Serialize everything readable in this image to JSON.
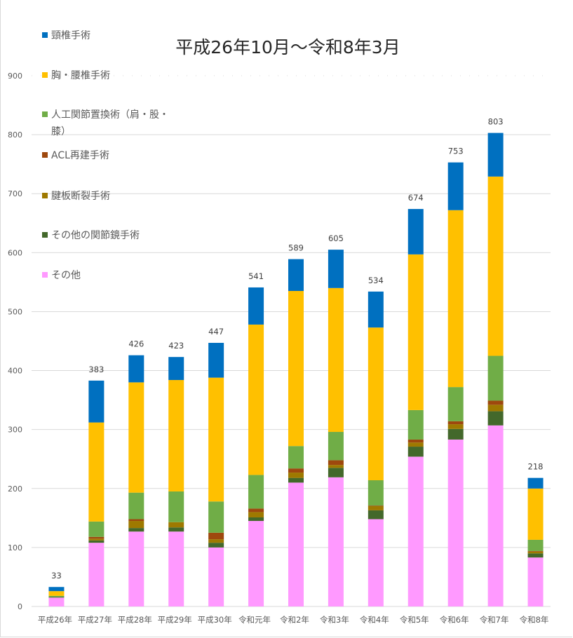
{
  "chart_data": {
    "type": "bar",
    "stacked": true,
    "title": "平成26年10月～令和8年3月",
    "xlabel": "",
    "ylabel": "",
    "ylim": [
      0,
      900
    ],
    "yticks": [
      "0",
      "100",
      "200",
      "300",
      "400",
      "500",
      "600",
      "700",
      "800",
      "900"
    ],
    "grid": true,
    "legend_position": "top-left",
    "categories": [
      "平成26年",
      "平成27年",
      "平成28年",
      "平成29年",
      "平成30年",
      "令和元年",
      "令和2年",
      "令和3年",
      "令和4年",
      "令和5年",
      "令和6年",
      "令和7年",
      "令和8年"
    ],
    "totals": [
      33,
      383,
      426,
      423,
      447,
      541,
      589,
      605,
      534,
      674,
      753,
      803,
      218
    ],
    "series": [
      {
        "name": "その他",
        "color": "#ff99ff",
        "values": [
          15,
          108,
          127,
          127,
          100,
          145,
          210,
          219,
          148,
          254,
          283,
          307,
          83
        ]
      },
      {
        "name": "その他の関節鏡手術",
        "color": "#43682b",
        "values": [
          1,
          4,
          6,
          7,
          8,
          6,
          8,
          16,
          15,
          17,
          18,
          24,
          7
        ]
      },
      {
        "name": "腱板断裂手術",
        "color": "#9e7900",
        "values": [
          0,
          3,
          12,
          9,
          6,
          9,
          9,
          5,
          7,
          7,
          8,
          11,
          3
        ]
      },
      {
        "name": "ACL再建手術",
        "color": "#9e480e",
        "values": [
          0,
          3,
          3,
          0,
          11,
          6,
          7,
          8,
          1,
          5,
          5,
          7,
          1
        ]
      },
      {
        "name": "人工関節置換術（肩・股・膝）",
        "color": "#70ad47",
        "values": [
          2,
          26,
          45,
          52,
          53,
          57,
          38,
          48,
          43,
          50,
          58,
          76,
          19
        ]
      },
      {
        "name": "胸・腰椎手術",
        "color": "#ffc000",
        "values": [
          8,
          168,
          187,
          189,
          210,
          255,
          263,
          244,
          259,
          264,
          300,
          304,
          87
        ]
      },
      {
        "name": "頸椎手術",
        "color": "#0070c0",
        "values": [
          7,
          71,
          46,
          39,
          59,
          63,
          54,
          65,
          61,
          77,
          81,
          74,
          18
        ]
      }
    ],
    "legend": [
      {
        "label": "頸椎手術",
        "color": "#0070c0"
      },
      {
        "label": "胸・腰椎手術",
        "color": "#ffc000"
      },
      {
        "label": "人工関節置換術（肩・股・",
        "label_cont": "膝）",
        "color": "#70ad47"
      },
      {
        "label": "ACL再建手術",
        "color": "#9e480e"
      },
      {
        "label": "腱板断裂手術",
        "color": "#9e7900"
      },
      {
        "label": "その他の関節鏡手術",
        "color": "#43682b"
      },
      {
        "label": "その他",
        "color": "#ff99ff"
      }
    ]
  }
}
